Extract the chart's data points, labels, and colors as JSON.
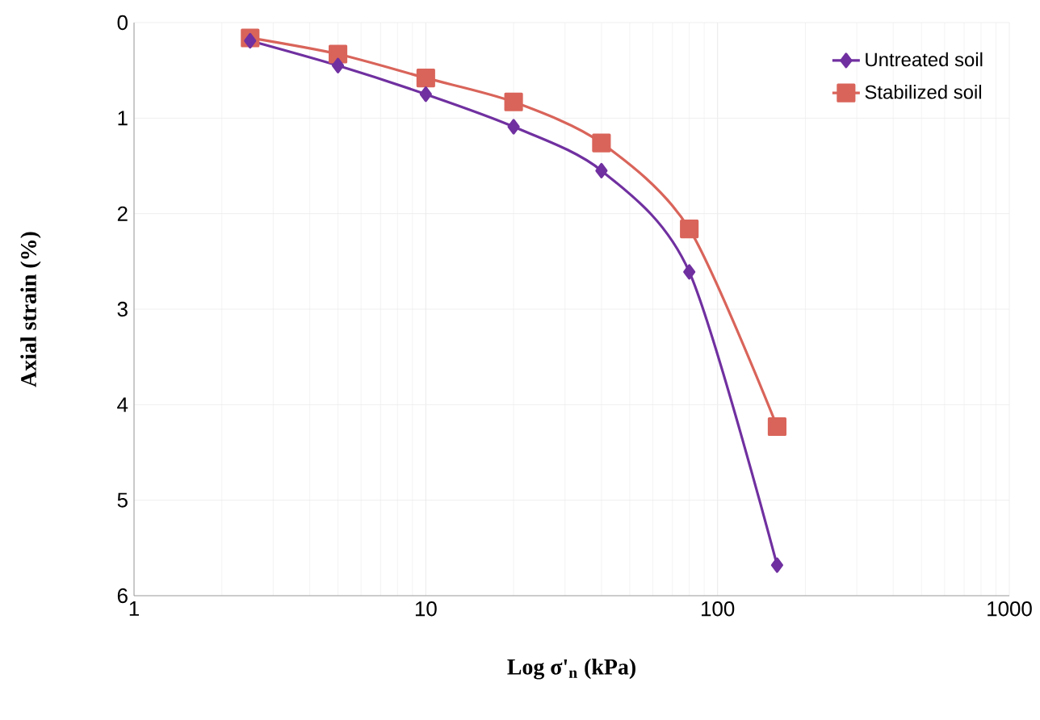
{
  "chart_data": {
    "type": "line",
    "xlabel": "Log σ'$_{n}$ (kPa)",
    "ylabel": "Axial strain (%)",
    "x": [
      2.5,
      5,
      10,
      20,
      40,
      80,
      160
    ],
    "series": [
      {
        "name": "Untreated soil",
        "color": "#7030a0",
        "marker": "diamond",
        "values": [
          0.19,
          0.45,
          0.75,
          1.09,
          1.55,
          2.61,
          5.68
        ]
      },
      {
        "name": "Stabilized soil",
        "color": "#d9645a",
        "marker": "square",
        "values": [
          0.16,
          0.33,
          0.58,
          0.83,
          1.26,
          2.16,
          4.23
        ]
      }
    ],
    "log": "x",
    "xlim": [
      1,
      1000
    ],
    "xticks": [
      1,
      10,
      100,
      1000
    ],
    "ylim": [
      6,
      0
    ],
    "yticks": [
      0,
      1,
      2,
      3,
      4,
      5,
      6
    ],
    "grid": true,
    "legend": "top right"
  }
}
